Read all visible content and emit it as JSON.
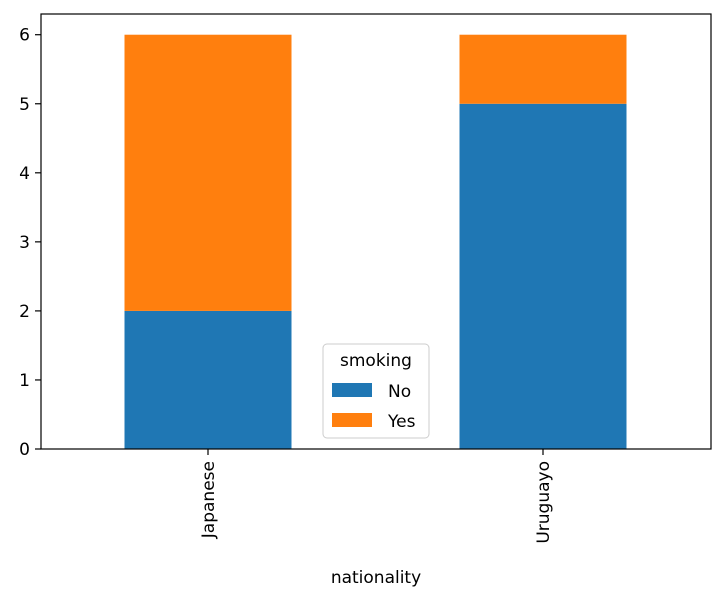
{
  "chart_data": {
    "type": "bar",
    "stacked": true,
    "categories": [
      "Japanese",
      "Uruguayo"
    ],
    "series": [
      {
        "name": "No",
        "values": [
          2,
          5
        ],
        "color": "#1f77b4"
      },
      {
        "name": "Yes",
        "values": [
          4,
          1
        ],
        "color": "#ff7f0e"
      }
    ],
    "xlabel": "nationality",
    "ylabel": "",
    "ylim": [
      0,
      6.3
    ],
    "yticks": [
      "0",
      "1",
      "2",
      "3",
      "4",
      "5",
      "6"
    ],
    "grid": false,
    "legend": {
      "title": "smoking",
      "placement": "lower-center"
    }
  }
}
